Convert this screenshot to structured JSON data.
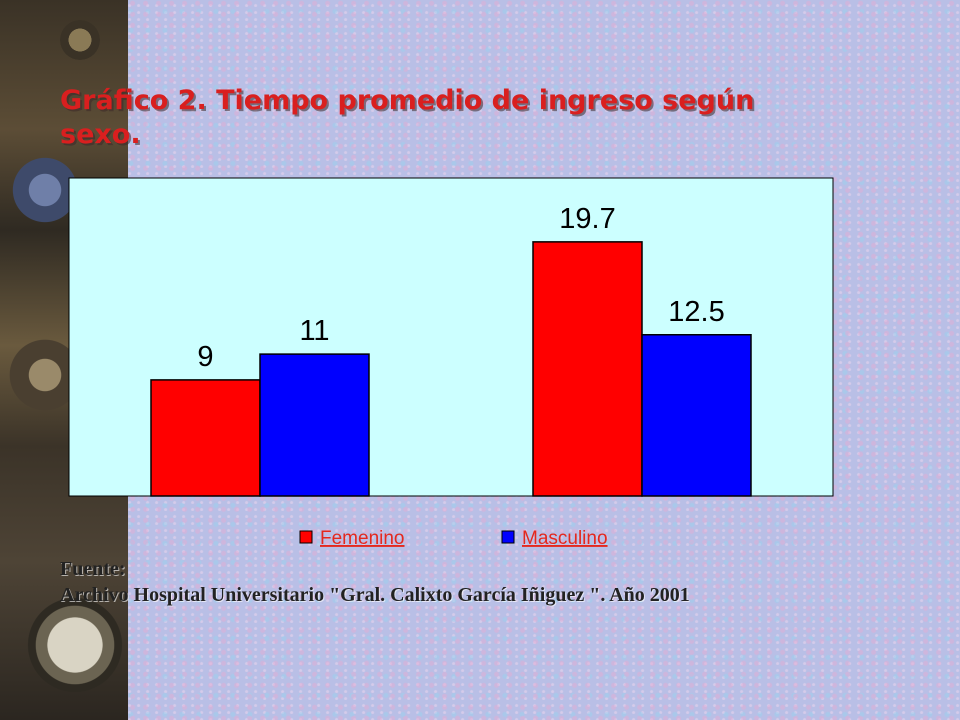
{
  "slide": {
    "title": "Gráfico 2. Tiempo promedio de ingreso según sexo.",
    "source_label": "Fuente:",
    "source_text": "Archivo Hospital  Universitario  \"Gral. Calixto García Iñiguez \". Año 2001"
  },
  "chart_data": {
    "type": "bar",
    "title": "",
    "xlabel": "",
    "ylabel": "",
    "categories": [
      "",
      ""
    ],
    "series": [
      {
        "name": "Femenino",
        "values": [
          9,
          19.7
        ],
        "color": "#ff0000"
      },
      {
        "name": "Masculino",
        "values": [
          11,
          12.5
        ],
        "color": "#0000ff"
      }
    ],
    "ylim": [
      0,
      25
    ],
    "grid": false,
    "legend": "bottom",
    "plot_background": "#ccffff"
  }
}
